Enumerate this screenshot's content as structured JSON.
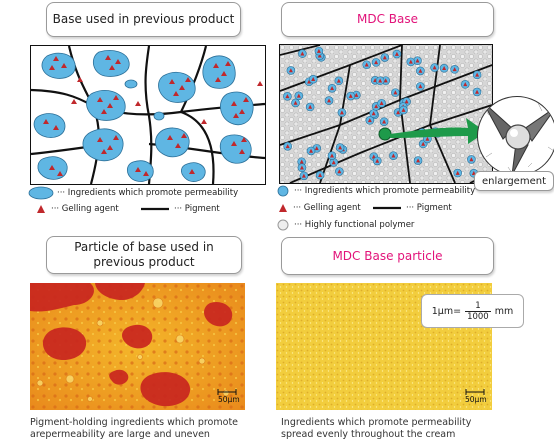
{
  "previous": {
    "title": "Base used in previous product",
    "legend_permeability": "··· Ingredients which promote permeability",
    "legend_gelling": "··· Gelling agent",
    "legend_pigment": "··· Pigment"
  },
  "mdc": {
    "title": "MDC Base",
    "legend_permeability": "··· Ingredients which promote permeability",
    "legend_gelling": "··· Gelling agent",
    "legend_pigment": "··· Pigment",
    "legend_polymer": "··· Highly functional polymer",
    "enlargement": "enlargement"
  },
  "particle_previous": {
    "title": "Particle of base used in previous product",
    "scale": "50μm",
    "caption": "Pigment-holding ingredients which promote arepermeability are large and uneven"
  },
  "particle_mdc": {
    "title": "MDC Base particle",
    "scale": "50μm",
    "unit_prefix": "1μm=",
    "unit_num": "1",
    "unit_den": "1000",
    "unit_suffix": "mm",
    "caption": "Ingredients which promote permeability spread evenly throughout the cream"
  },
  "colors": {
    "blob": "#5fb6e3",
    "triangle": "#c0282c",
    "pink": "#e2137a",
    "green": "#1e9a4a"
  }
}
